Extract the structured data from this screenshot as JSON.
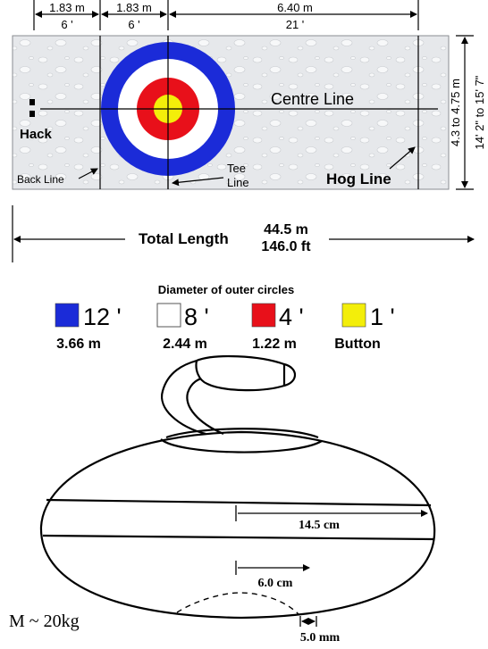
{
  "sheet": {
    "top_dims": [
      {
        "metric": "1.83 m",
        "feet": "6 '"
      },
      {
        "metric": "1.83 m",
        "feet": "6 '"
      },
      {
        "metric": "6.40 m",
        "feet": "21 '"
      }
    ],
    "width_label_metric": "4.3 to 4.75 m",
    "width_label_feet": "14' 2\" to 15' 7\"",
    "labels": {
      "centre_line": "Centre Line",
      "hack": "Hack",
      "back_line": "Back Line",
      "tee_line_1": "Tee",
      "tee_line_2": "Line",
      "hog_line": "Hog Line"
    },
    "colors": {
      "blue": "#1b2bd8",
      "red": "#e8101a",
      "yellow": "#f3ee0a",
      "white": "#ffffff",
      "ice": "#e9ebee"
    }
  },
  "total_length": {
    "label": "Total Length",
    "metric": "44.5 m",
    "feet": "146.0 ft"
  },
  "legend": {
    "title": "Diameter of outer circles",
    "items": [
      {
        "color": "#1b2bd8",
        "feet": "12 '",
        "metric": "3.66 m"
      },
      {
        "color": "#ffffff",
        "feet": "8 '",
        "metric": "2.44 m"
      },
      {
        "color": "#e8101a",
        "feet": "4 '",
        "metric": "1.22 m"
      },
      {
        "color": "#f3ee0a",
        "feet": "1 '",
        "metric": "Button"
      }
    ]
  },
  "stone": {
    "dim_width": "14.5 cm",
    "dim_radius": "6.0 cm",
    "dim_gap": "5.0 mm",
    "mass": "M ~ 20kg"
  }
}
